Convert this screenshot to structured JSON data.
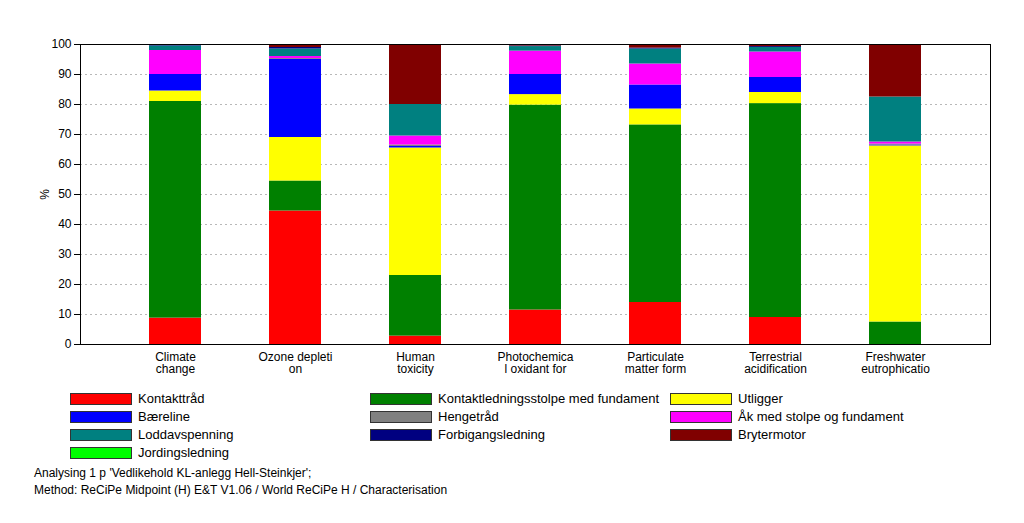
{
  "chart_data": {
    "type": "bar",
    "stacked": true,
    "grid": true,
    "legend": "bottom",
    "y_label": "%",
    "ylim": [
      0,
      100
    ],
    "yticks": [
      0,
      10,
      20,
      30,
      40,
      50,
      60,
      70,
      80,
      90,
      100
    ],
    "categories": [
      "Climate\nchange",
      "Ozone depleti\non",
      "Human\ntoxicity",
      "Photochemica\nl oxidant for",
      "Particulate\nmatter form",
      "Terrestrial\nacidification",
      "Freshwater\neutrophicatio"
    ],
    "series": [
      {
        "name": "Kontakttråd",
        "color": "#ff0000",
        "values": [
          8.8,
          44.5,
          2.8,
          11.5,
          14,
          9,
          0
        ]
      },
      {
        "name": "Kontaktledningsstolpe med fundament",
        "color": "#008000",
        "values": [
          72.2,
          10,
          20.2,
          68.3,
          59.2,
          71.3,
          7.5
        ]
      },
      {
        "name": "Utligger",
        "color": "#ffff00",
        "values": [
          3.5,
          14.5,
          42.5,
          3.5,
          5.3,
          3.7,
          58.7
        ]
      },
      {
        "name": "Bæreline",
        "color": "#0000ff",
        "values": [
          5.5,
          26,
          0.5,
          6.7,
          8,
          5,
          0.3
        ]
      },
      {
        "name": "Hengetråd",
        "color": "#808080",
        "values": [
          0,
          0.3,
          0.5,
          0,
          0,
          0,
          0.3
        ]
      },
      {
        "name": "Åk med stolpe og fundament",
        "color": "#ff00ff",
        "values": [
          8,
          0.7,
          3,
          7.8,
          7,
          8.5,
          0.7
        ]
      },
      {
        "name": "Loddavspenning",
        "color": "#008080",
        "values": [
          1.5,
          2.5,
          10.5,
          1.5,
          5,
          1.5,
          15
        ]
      },
      {
        "name": "Forbigangsledning",
        "color": "#000080",
        "values": [
          0.2,
          0.5,
          0,
          0.2,
          0.3,
          0.3,
          0
        ]
      },
      {
        "name": "Brytermotor",
        "color": "#800000",
        "values": [
          0.2,
          1,
          20,
          0.5,
          1.2,
          0.7,
          17.5
        ]
      },
      {
        "name": "Jordingsledning",
        "color": "#00ff00",
        "values": [
          0.1,
          0,
          0,
          0,
          0,
          0,
          0
        ]
      }
    ],
    "annotations": [
      "Analysing 1 p 'Vedlikehold KL-anlegg Hell-Steinkjer';",
      "Method: ReCiPe Midpoint (H) E&T V1.06 / World ReCiPe H / Characterisation"
    ]
  }
}
